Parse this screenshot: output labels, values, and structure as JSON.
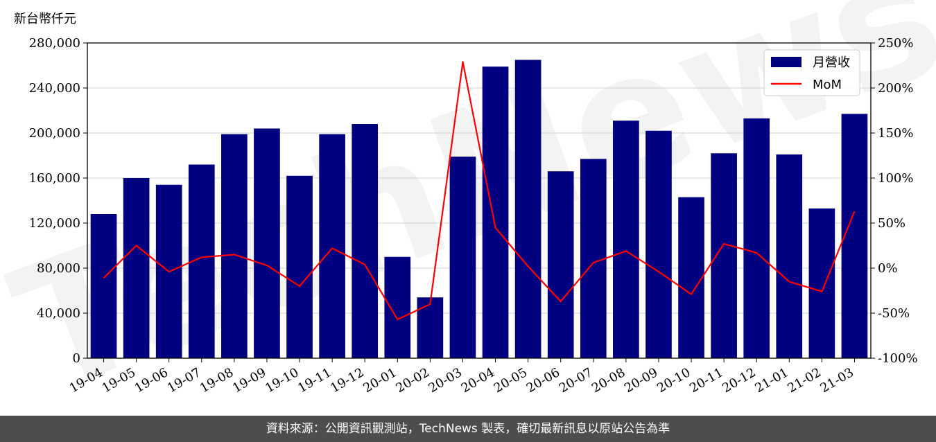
{
  "chart_data": {
    "type": "bar+line",
    "y_left_unit": "新台幣仟元",
    "categories": [
      "19-04",
      "19-05",
      "19-06",
      "19-07",
      "19-08",
      "19-09",
      "19-10",
      "19-11",
      "19-12",
      "20-01",
      "20-02",
      "20-03",
      "20-04",
      "20-05",
      "20-06",
      "20-07",
      "20-08",
      "20-09",
      "20-10",
      "20-11",
      "20-12",
      "21-01",
      "21-02",
      "21-03"
    ],
    "series": [
      {
        "name": "月營收",
        "type": "bar",
        "axis": "left",
        "color": "#000080",
        "values": [
          128000,
          160000,
          154000,
          172000,
          199000,
          204000,
          162000,
          199000,
          208000,
          90000,
          54000,
          179000,
          259000,
          265000,
          166000,
          177000,
          211000,
          202000,
          143000,
          182000,
          213000,
          181000,
          133000,
          217000
        ]
      },
      {
        "name": "MoM",
        "type": "line",
        "axis": "right",
        "color": "#ff0000",
        "values": [
          -11,
          25,
          -4,
          12,
          15,
          3,
          -20,
          22,
          4,
          -57,
          -40,
          229,
          45,
          2,
          -37,
          6,
          19,
          -4,
          -29,
          27,
          17,
          -15,
          -26,
          63
        ]
      }
    ],
    "ylim_left": [
      0,
      280000
    ],
    "yticks_left": [
      "0",
      "40,000",
      "80,000",
      "120,000",
      "160,000",
      "200,000",
      "240,000",
      "280,000"
    ],
    "ylim_right": [
      -100,
      250
    ],
    "yticks_right": [
      "-100%",
      "-50%",
      "0%",
      "50%",
      "100%",
      "150%",
      "200%",
      "250%"
    ],
    "grid": "horizontal",
    "legend_position": "top-right",
    "watermark": "TechNews"
  },
  "footer": {
    "text": "資料來源：公開資訊觀測站，TechNews 製表，確切最新訊息以原站公告為準"
  }
}
